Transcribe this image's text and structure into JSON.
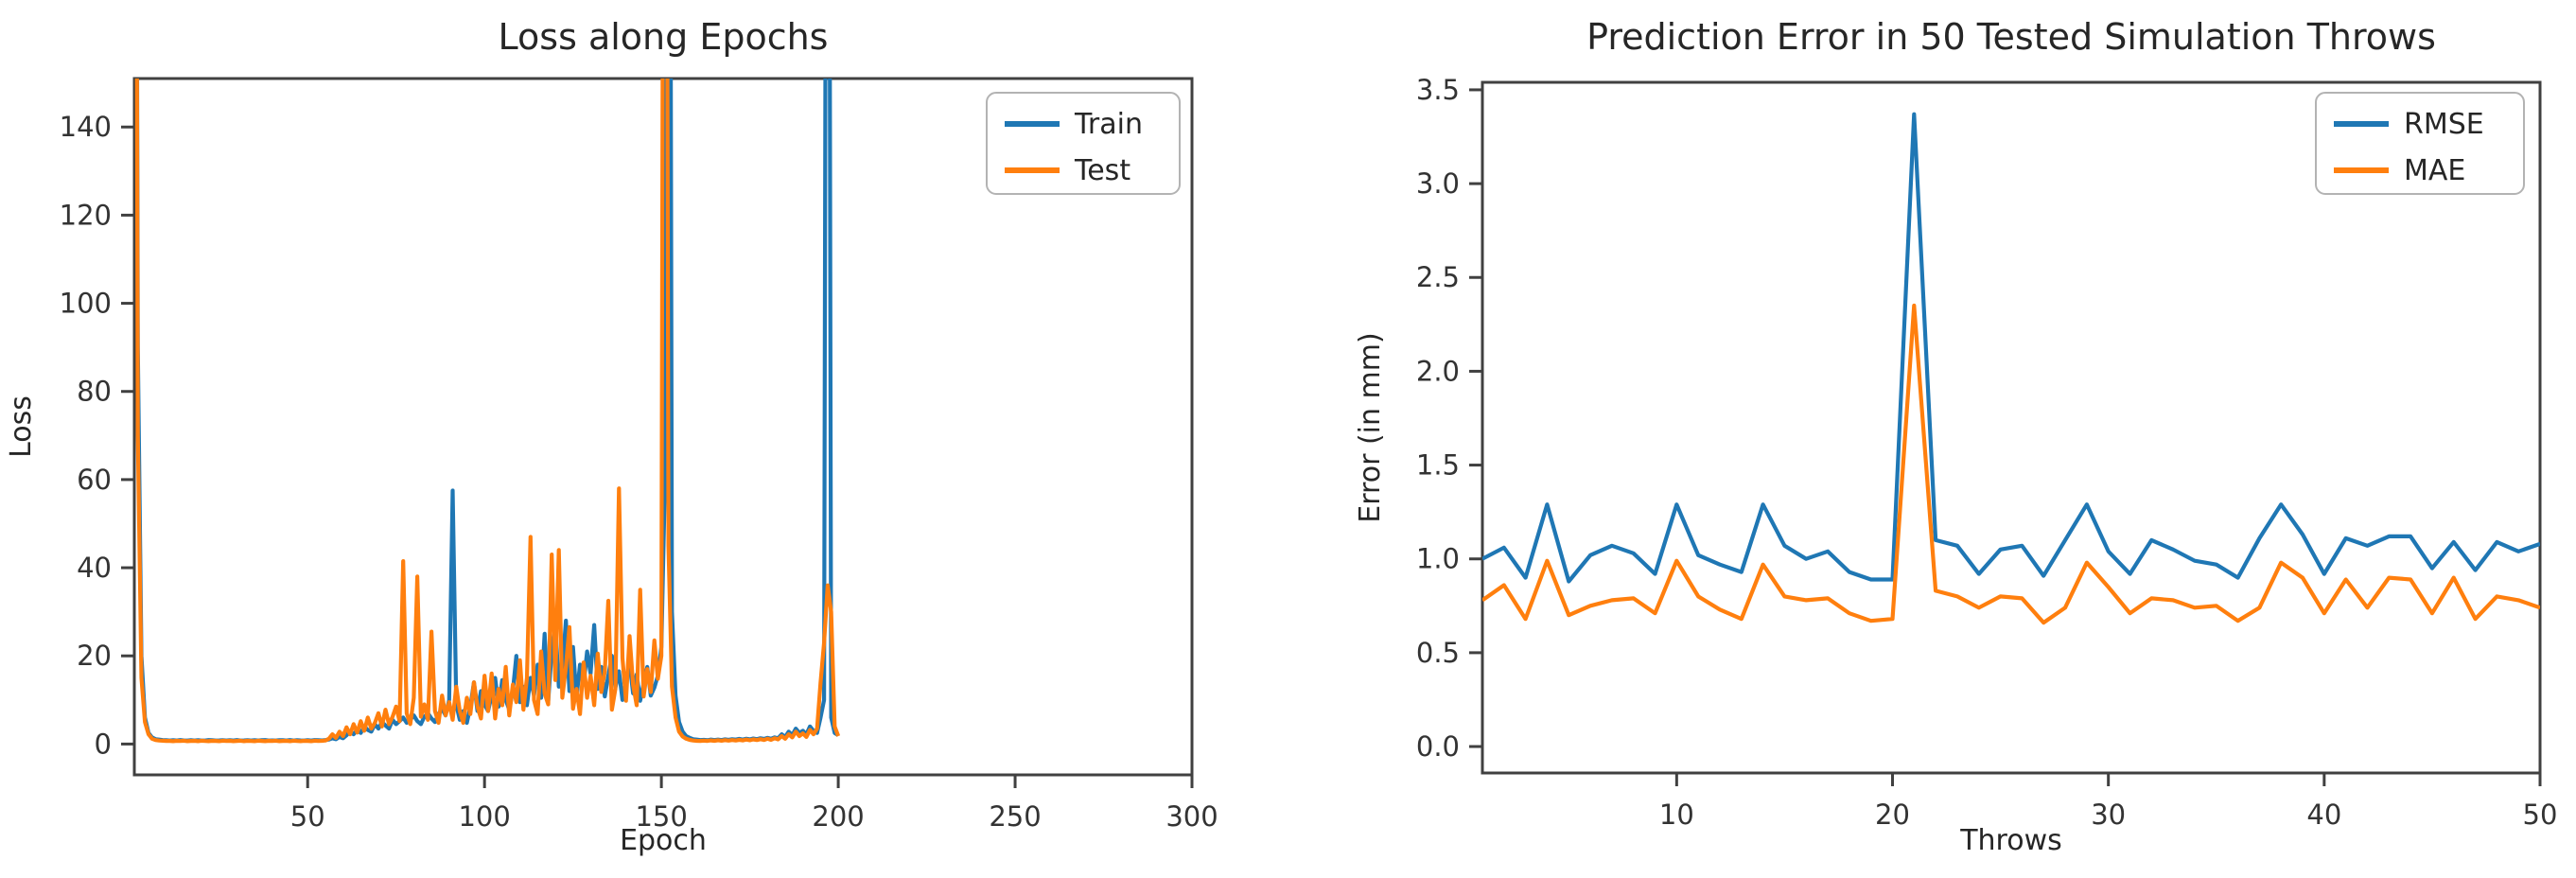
{
  "figure": {
    "background": "#ffffff",
    "note": "Two matplotlib-style line charts side by side. Series values of 400 represent off-scale spikes clipped at the axes top."
  },
  "colors": {
    "train_blue": "#1f77b4",
    "test_orange": "#ff7f0e",
    "spine_gray": "#404040",
    "text_dark": "#262626"
  },
  "chart_data": [
    {
      "type": "line",
      "title": "Loss along Epochs",
      "xlabel": "Epoch",
      "ylabel": "Loss",
      "grid": false,
      "legend_position": "upper right inside",
      "xlim": [
        1,
        300
      ],
      "ylim": [
        -7,
        151
      ],
      "x_start": 1,
      "xticks": [
        50,
        100,
        150,
        200,
        250,
        300
      ],
      "xtick_labels": [
        "50",
        "100",
        "150",
        "200",
        "250",
        "300"
      ],
      "yticks": [
        0,
        20,
        40,
        60,
        80,
        100,
        120,
        140
      ],
      "ytick_labels": [
        "0",
        "20",
        "40",
        "60",
        "80",
        "100",
        "120",
        "140"
      ],
      "series": [
        {
          "name": "Train",
          "color": "#1f77b4",
          "values": [
            400,
            90,
            20,
            6,
            2.5,
            1.5,
            1.1,
            1.0,
            0.9,
            0.85,
            0.8,
            0.85,
            0.8,
            0.9,
            0.82,
            0.8,
            0.88,
            0.8,
            0.85,
            0.8,
            0.8,
            0.9,
            0.85,
            0.8,
            0.82,
            0.88,
            0.8,
            0.85,
            0.8,
            0.9,
            0.8,
            0.82,
            0.85,
            0.8,
            0.88,
            0.8,
            0.85,
            0.9,
            0.8,
            0.82,
            0.8,
            0.88,
            0.85,
            0.8,
            0.9,
            0.8,
            0.85,
            0.82,
            0.8,
            0.88,
            0.8,
            0.9,
            0.85,
            0.82,
            0.9,
            1.0,
            1.3,
            1.1,
            1.6,
            1.3,
            2.0,
            2.8,
            2.2,
            3.2,
            2.5,
            4.0,
            3.2,
            2.8,
            4.5,
            3.5,
            5.0,
            4.2,
            3.5,
            5.5,
            4.5,
            5.2,
            6.0,
            4.8,
            5.5,
            6.5,
            5.2,
            4.5,
            6.2,
            7.0,
            5.8,
            5.0,
            6.8,
            8.0,
            6.5,
            10.0,
            57.5,
            9.0,
            5.5,
            7.5,
            4.8,
            8.5,
            14.0,
            7.5,
            12.0,
            9.0,
            7.5,
            11.0,
            15.0,
            8.5,
            14.5,
            10.0,
            7.8,
            12.0,
            20.0,
            9.5,
            13.0,
            8.8,
            15.0,
            11.0,
            18.0,
            10.5,
            25.0,
            9.8,
            21.0,
            27.5,
            13.0,
            17.0,
            28.0,
            12.0,
            22.0,
            10.5,
            18.0,
            13.5,
            21.0,
            16.0,
            27.0,
            12.5,
            17.5,
            10.8,
            15.5,
            20.0,
            12.8,
            16.5,
            10.0,
            14.5,
            18.5,
            11.5,
            15.8,
            9.8,
            13.8,
            17.5,
            11.0,
            12.8,
            15.5,
            22.0,
            60.0,
            400,
            30.0,
            11.0,
            5.0,
            2.8,
            1.8,
            1.4,
            1.1,
            1.0,
            0.9,
            0.95,
            0.85,
            1.0,
            0.9,
            1.0,
            0.9,
            1.05,
            0.95,
            1.1,
            1.0,
            1.15,
            1.0,
            1.2,
            1.05,
            1.25,
            1.1,
            1.3,
            1.15,
            1.4,
            1.2,
            1.5,
            1.3,
            2.2,
            1.6,
            2.8,
            2.0,
            3.5,
            2.5,
            3.0,
            2.2,
            4.0,
            3.0,
            2.5,
            6.0,
            10.0,
            400,
            6.0,
            2.5,
            2.0
          ]
        },
        {
          "name": "Test",
          "color": "#ff7f0e",
          "values": [
            400,
            70,
            15,
            5,
            2.2,
            1.2,
            0.9,
            0.8,
            0.75,
            0.7,
            0.7,
            0.65,
            0.72,
            0.68,
            0.75,
            0.65,
            0.7,
            0.72,
            0.65,
            0.74,
            0.68,
            0.65,
            0.73,
            0.7,
            0.65,
            0.75,
            0.68,
            0.72,
            0.65,
            0.7,
            0.74,
            0.65,
            0.72,
            0.68,
            0.65,
            0.75,
            0.7,
            0.65,
            0.72,
            0.68,
            0.74,
            0.65,
            0.7,
            0.72,
            0.65,
            0.75,
            0.68,
            0.65,
            0.73,
            0.7,
            0.65,
            0.74,
            0.68,
            0.72,
            0.8,
            1.2,
            2.2,
            1.4,
            2.8,
            1.8,
            3.8,
            2.2,
            4.5,
            2.6,
            5.2,
            3.0,
            6.0,
            3.5,
            4.8,
            7.0,
            4.0,
            7.8,
            4.5,
            6.2,
            8.5,
            5.2,
            41.5,
            7.0,
            4.5,
            10.5,
            38.0,
            6.2,
            9.0,
            5.5,
            25.5,
            7.5,
            4.8,
            11.0,
            6.5,
            9.5,
            5.5,
            13.0,
            7.5,
            4.8,
            10.5,
            6.8,
            14.0,
            8.5,
            5.8,
            15.5,
            7.5,
            16.0,
            5.8,
            12.5,
            8.8,
            17.5,
            6.5,
            13.5,
            9.5,
            19.0,
            7.8,
            15.0,
            47.0,
            10.0,
            6.8,
            21.0,
            11.5,
            9.0,
            43.0,
            14.5,
            44.0,
            10.5,
            17.5,
            26.5,
            8.0,
            12.5,
            6.8,
            18.5,
            10.5,
            15.5,
            8.8,
            20.5,
            11.8,
            16.5,
            32.5,
            7.8,
            12.5,
            58.0,
            19.5,
            9.8,
            24.5,
            13.5,
            8.8,
            35.0,
            10.8,
            17.0,
            11.8,
            23.5,
            14.8,
            20.0,
            400,
            45.0,
            13.0,
            6.0,
            2.8,
            1.7,
            1.2,
            0.95,
            0.8,
            0.72,
            0.7,
            0.78,
            0.7,
            0.82,
            0.72,
            0.85,
            0.75,
            0.88,
            0.78,
            0.9,
            0.8,
            0.95,
            0.82,
            1.0,
            0.85,
            1.05,
            0.9,
            1.1,
            0.92,
            1.2,
            0.95,
            1.3,
            1.05,
            1.8,
            1.2,
            2.2,
            1.5,
            2.8,
            1.8,
            2.4,
            1.6,
            3.2,
            2.2,
            3.5,
            14.0,
            23.0,
            36.0,
            30.0,
            4.0,
            1.8
          ]
        }
      ]
    },
    {
      "type": "line",
      "title": "Prediction Error in 50 Tested Simulation Throws",
      "xlabel": "Throws",
      "ylabel": "Error (in mm)",
      "grid": false,
      "legend_position": "upper right inside",
      "xlim": [
        1,
        50
      ],
      "ylim": [
        -0.141,
        3.54
      ],
      "x_start": 1,
      "xticks": [
        10,
        20,
        30,
        40,
        50
      ],
      "xtick_labels": [
        "10",
        "20",
        "30",
        "40",
        "50"
      ],
      "yticks": [
        0.0,
        0.5,
        1.0,
        1.5,
        2.0,
        2.5,
        3.0,
        3.5
      ],
      "ytick_labels": [
        "0.0",
        "0.5",
        "1.0",
        "1.5",
        "2.0",
        "2.5",
        "3.0",
        "3.5"
      ],
      "series": [
        {
          "name": "RMSE",
          "color": "#1f77b4",
          "values": [
            1.0,
            1.06,
            0.9,
            1.29,
            0.88,
            1.02,
            1.07,
            1.03,
            0.92,
            1.29,
            1.02,
            0.97,
            0.93,
            1.29,
            1.07,
            1.0,
            1.04,
            0.93,
            0.89,
            0.89,
            3.37,
            1.1,
            1.07,
            0.92,
            1.05,
            1.07,
            0.91,
            1.1,
            1.29,
            1.04,
            0.92,
            1.1,
            1.05,
            0.99,
            0.97,
            0.9,
            1.11,
            1.29,
            1.13,
            0.92,
            1.11,
            1.07,
            1.12,
            1.12,
            0.95,
            1.09,
            0.94,
            1.09,
            1.04,
            1.08
          ]
        },
        {
          "name": "MAE",
          "color": "#ff7f0e",
          "values": [
            0.78,
            0.86,
            0.68,
            0.99,
            0.7,
            0.75,
            0.78,
            0.79,
            0.71,
            0.99,
            0.8,
            0.73,
            0.68,
            0.97,
            0.8,
            0.78,
            0.79,
            0.71,
            0.67,
            0.68,
            2.35,
            0.83,
            0.8,
            0.74,
            0.8,
            0.79,
            0.66,
            0.74,
            0.98,
            0.85,
            0.71,
            0.79,
            0.78,
            0.74,
            0.75,
            0.67,
            0.74,
            0.98,
            0.9,
            0.71,
            0.89,
            0.74,
            0.9,
            0.89,
            0.71,
            0.9,
            0.68,
            0.8,
            0.78,
            0.74
          ]
        }
      ]
    }
  ]
}
